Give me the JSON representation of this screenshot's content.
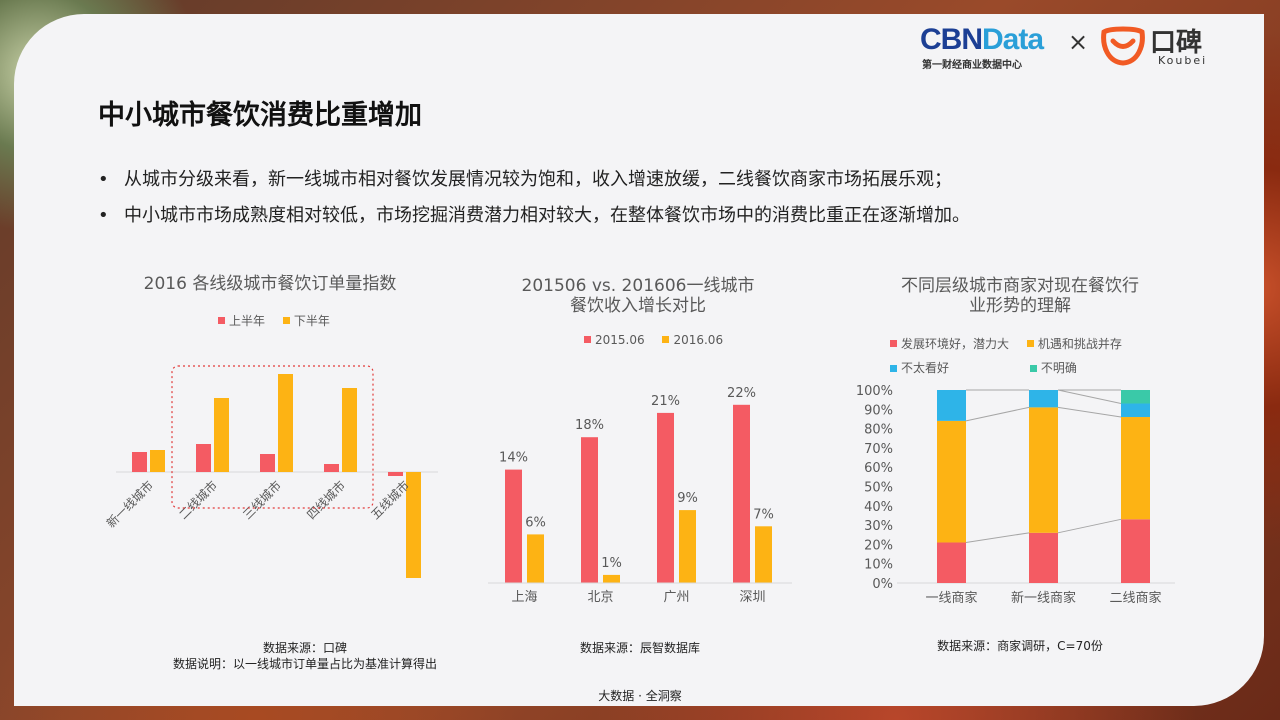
{
  "brand": {
    "cbn_part1": "CBN",
    "cbn_part2": "Data",
    "cbn_subtitle": "第一财经商业数据中心",
    "times": "×",
    "koubei_name": "口碑",
    "koubei_sub": "Koubei"
  },
  "page_title": "中小城市餐饮消费比重增加",
  "bullets": [
    "从城市分级来看，新一线城市相对餐饮发展情况较为饱和，收入增速放缓，二线餐饮商家市场拓展乐观；",
    "中小城市市场成熟度相对较低，市场挖掘消费潜力相对较大，在整体餐饮市场中的消费比重正在逐渐增加。"
  ],
  "bullet_symbol": "•",
  "colors": {
    "red": "#f45b63",
    "orange": "#fdb314",
    "blue": "#2eb4e8",
    "teal": "#3ac9a8"
  },
  "chart_data": [
    {
      "type": "bar",
      "title": "2016 各线级城市餐饮订单量指数",
      "categories": [
        "新一线城市",
        "二线城市",
        "三线城市",
        "四线城市",
        "五线城市"
      ],
      "series": [
        {
          "name": "上半年",
          "values": [
            1.0,
            1.4,
            0.9,
            0.4,
            -0.2
          ]
        },
        {
          "name": "下半年",
          "values": [
            1.1,
            3.7,
            4.9,
            4.2,
            -5.3
          ]
        }
      ],
      "highlight": [
        "二线城市",
        "三线城市",
        "四线城市"
      ],
      "note_lines": [
        "数据来源：口碑",
        "数据说明：以一线城市订单量占比为基准计算得出"
      ]
    },
    {
      "type": "bar",
      "title_lines": [
        "201506 vs. 201606一线城市",
        "餐饮收入增长对比"
      ],
      "categories": [
        "上海",
        "北京",
        "广州",
        "深圳"
      ],
      "series": [
        {
          "name": "2015.06",
          "values": [
            14,
            18,
            21,
            22
          ]
        },
        {
          "name": "2016.06",
          "values": [
            6,
            1,
            9,
            7
          ]
        }
      ],
      "data_labels": [
        [
          "14%",
          "18%",
          "21%",
          "22%"
        ],
        [
          "6%",
          "1%",
          "9%",
          "7%"
        ]
      ],
      "note_lines": [
        "数据来源：辰智数据库"
      ]
    },
    {
      "type": "bar",
      "stacked": true,
      "title_lines": [
        "不同层级城市商家对现在餐饮行",
        "业形势的理解"
      ],
      "categories": [
        "一线商家",
        "新一线商家",
        "二线商家"
      ],
      "series": [
        {
          "name": "发展环境好，潜力大",
          "values": [
            21,
            26,
            33
          ]
        },
        {
          "name": "机遇和挑战并存",
          "values": [
            63,
            65,
            53
          ]
        },
        {
          "name": "不太看好",
          "values": [
            16,
            9,
            7
          ]
        },
        {
          "name": "不明确",
          "values": [
            0,
            0,
            7
          ]
        }
      ],
      "y_ticks": [
        "0%",
        "10%",
        "20%",
        "30%",
        "40%",
        "50%",
        "60%",
        "70%",
        "80%",
        "90%",
        "100%"
      ],
      "ylim": [
        0,
        100
      ],
      "note_lines": [
        "数据来源：商家调研，C=70份"
      ]
    }
  ],
  "footer": "大数据 · 全洞察"
}
